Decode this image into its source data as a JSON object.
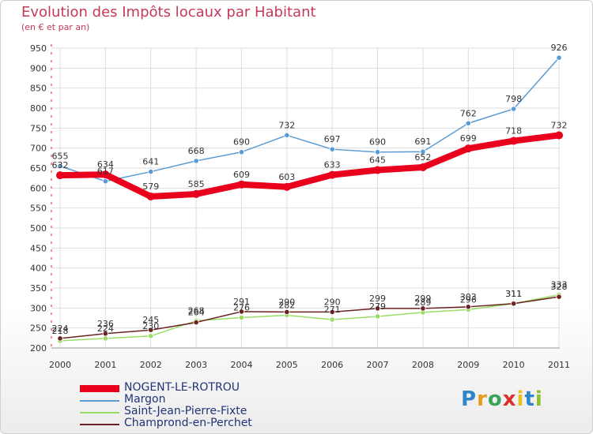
{
  "title": "Evolution des Impôts locaux par Habitant",
  "subtitle": "(en € et par an)",
  "logo": "Proxiti",
  "chart_data": {
    "type": "line",
    "categories": [
      "2000",
      "2001",
      "2002",
      "2003",
      "2004",
      "2005",
      "2006",
      "2007",
      "2008",
      "2009",
      "2010",
      "2011"
    ],
    "ylim": [
      200,
      950
    ],
    "yticks": [
      200,
      250,
      300,
      350,
      400,
      450,
      500,
      550,
      600,
      650,
      700,
      750,
      800,
      850,
      900,
      950
    ],
    "xlabel": "",
    "ylabel": "",
    "series": [
      {
        "name": "NOGENT-LE-ROTROU",
        "color": "#e8001c",
        "values": [
          632,
          634,
          579,
          585,
          609,
          603,
          633,
          645,
          652,
          699,
          718,
          732
        ]
      },
      {
        "name": "Margon",
        "color": "#5b9bd5",
        "values": [
          655,
          617,
          641,
          668,
          690,
          732,
          697,
          690,
          691,
          762,
          798,
          926
        ]
      },
      {
        "name": "Saint-Jean-Pierre-Fixte",
        "color": "#99dd66",
        "values": [
          218,
          224,
          230,
          268,
          276,
          282,
          271,
          279,
          289,
          296,
          311,
          333
        ]
      },
      {
        "name": "Champrond-en-Perchet",
        "color": "#6b2222",
        "values": [
          224,
          236,
          245,
          264,
          291,
          290,
          290,
          299,
          299,
          303,
          311,
          328
        ]
      }
    ]
  }
}
